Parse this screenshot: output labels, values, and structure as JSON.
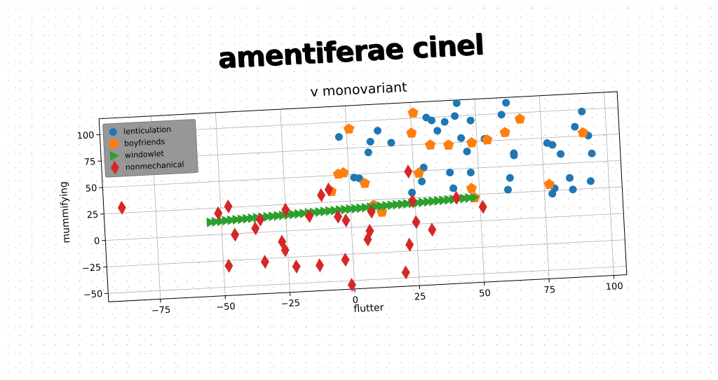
{
  "suptitle": "amentiferae cinel",
  "chart_data": {
    "type": "scatter",
    "title": "v monovariant",
    "xlabel": "flutter",
    "ylabel": "mummifying",
    "xlim": [
      -95,
      105
    ],
    "ylim": [
      -58,
      115
    ],
    "xticks": [
      -75,
      -50,
      -25,
      0,
      25,
      50,
      75,
      100
    ],
    "yticks": [
      -50,
      -25,
      0,
      25,
      50,
      75,
      100
    ],
    "xtick_labels": [
      "−75",
      "−50",
      "−25",
      "0",
      "25",
      "50",
      "75",
      "100"
    ],
    "ytick_labels": [
      "−50",
      "−25",
      "0",
      "25",
      "50",
      "75",
      "100"
    ],
    "grid": true,
    "legend_position": "top-left",
    "series": [
      {
        "name": "lenticulation",
        "marker": "circle",
        "color": "#1f77b4",
        "points": [
          [
            -3,
            86
          ],
          [
            8,
            70
          ],
          [
            9,
            80
          ],
          [
            12,
            90
          ],
          [
            17,
            78
          ],
          [
            4,
            46
          ],
          [
            2,
            47
          ],
          [
            24,
            30
          ],
          [
            28,
            40
          ],
          [
            29,
            53
          ],
          [
            31,
            100
          ],
          [
            33,
            97
          ],
          [
            35,
            87
          ],
          [
            38,
            95
          ],
          [
            39,
            47
          ],
          [
            40,
            32
          ],
          [
            42,
            100
          ],
          [
            43,
            112
          ],
          [
            44,
            79
          ],
          [
            46,
            66
          ],
          [
            47,
            46
          ],
          [
            48,
            95
          ],
          [
            53,
            77
          ],
          [
            60,
            99
          ],
          [
            62,
            110
          ],
          [
            62,
            39
          ],
          [
            61,
            28
          ],
          [
            64,
            62
          ],
          [
            64,
            60
          ],
          [
            77,
            70
          ],
          [
            79,
            68
          ],
          [
            79,
            27
          ],
          [
            78,
            22
          ],
          [
            82,
            59
          ],
          [
            85,
            36
          ],
          [
            86,
            25
          ],
          [
            88,
            84
          ],
          [
            91,
            98
          ],
          [
            93,
            75
          ],
          [
            93,
            32
          ],
          [
            94,
            58
          ]
        ]
      },
      {
        "name": "boyfriends",
        "marker": "pentagon",
        "color": "#ff7f0e",
        "points": [
          [
            1,
            93
          ],
          [
            -2,
            52
          ],
          [
            -4,
            51
          ],
          [
            6,
            41
          ],
          [
            -7,
            35
          ],
          [
            9,
            20
          ],
          [
            12,
            13
          ],
          [
            25,
            86
          ],
          [
            26,
            105
          ],
          [
            27,
            48
          ],
          [
            32,
            74
          ],
          [
            39,
            73
          ],
          [
            47,
            31
          ],
          [
            48,
            22
          ],
          [
            48,
            74
          ],
          [
            54,
            76
          ],
          [
            61,
            82
          ],
          [
            67,
            94
          ],
          [
            77,
            31
          ],
          [
            91,
            78
          ]
        ]
      },
      {
        "name": "windowlet",
        "marker": "triangle-right",
        "color": "#2ca02c",
        "points": [
          [
            -54,
            12
          ],
          [
            -52,
            12.3
          ],
          [
            -50,
            12.5
          ],
          [
            -48,
            12.8
          ],
          [
            -46,
            13
          ],
          [
            -44,
            13.2
          ],
          [
            -42,
            13.4
          ],
          [
            -40,
            13.6
          ],
          [
            -38,
            13.8
          ],
          [
            -36,
            14
          ],
          [
            -34,
            14.2
          ],
          [
            -32,
            14.4
          ],
          [
            -30,
            14.6
          ],
          [
            -28,
            14.8
          ],
          [
            -26,
            15
          ],
          [
            -24,
            15.2
          ],
          [
            -22,
            15.4
          ],
          [
            -20,
            15.6
          ],
          [
            -18,
            15.8
          ],
          [
            -16,
            16
          ],
          [
            -14,
            16.2
          ],
          [
            -12,
            16.4
          ],
          [
            -10,
            16.6
          ],
          [
            -8,
            16.8
          ],
          [
            -6,
            17
          ],
          [
            -4,
            17.2
          ],
          [
            -2,
            17.4
          ],
          [
            0,
            17.6
          ],
          [
            2,
            17.8
          ],
          [
            4,
            18
          ],
          [
            6,
            18.2
          ],
          [
            8,
            18.4
          ],
          [
            10,
            18.6
          ],
          [
            12,
            18.8
          ],
          [
            14,
            19
          ],
          [
            16,
            19.2
          ],
          [
            18,
            19.4
          ],
          [
            20,
            19.6
          ],
          [
            22,
            19.8
          ],
          [
            24,
            20
          ],
          [
            26,
            20.2
          ],
          [
            28,
            20.4
          ],
          [
            30,
            20.6
          ],
          [
            32,
            20.8
          ],
          [
            34,
            21
          ],
          [
            36,
            21.2
          ],
          [
            38,
            21.4
          ],
          [
            40,
            21.6
          ],
          [
            42,
            21.8
          ],
          [
            44,
            22
          ],
          [
            46,
            22.2
          ],
          [
            48,
            22.4
          ]
        ]
      },
      {
        "name": "nonmechanical",
        "marker": "thin-diamond",
        "color": "#d62728",
        "points": [
          [
            -88,
            30
          ],
          [
            -51,
            20
          ],
          [
            -47,
            26
          ],
          [
            -45,
            -1
          ],
          [
            -48,
            -30
          ],
          [
            -37,
            4
          ],
          [
            -35,
            12
          ],
          [
            -34,
            -28
          ],
          [
            -27,
            -10
          ],
          [
            -26,
            -18
          ],
          [
            -25,
            20
          ],
          [
            -22,
            -34
          ],
          [
            -16,
            13
          ],
          [
            -13,
            -34
          ],
          [
            -11,
            32
          ],
          [
            -8,
            37
          ],
          [
            -5,
            11
          ],
          [
            -3,
            -30
          ],
          [
            -2,
            7
          ],
          [
            -1,
            -54
          ],
          [
            6,
            -12
          ],
          [
            7,
            -4
          ],
          [
            8,
            14
          ],
          [
            20,
            -45
          ],
          [
            22,
            -19
          ],
          [
            23,
            50
          ],
          [
            24,
            22
          ],
          [
            25,
            2
          ],
          [
            31,
            -6
          ],
          [
            41,
            23
          ],
          [
            51,
            13
          ]
        ]
      }
    ]
  }
}
